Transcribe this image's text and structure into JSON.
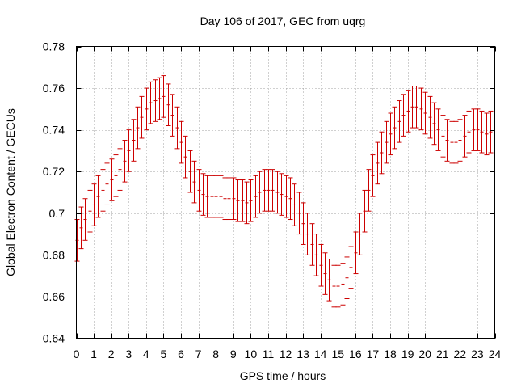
{
  "chart_data": {
    "type": "scatter",
    "title": "Day 106 of 2017, GEC from uqrg",
    "xlabel": "GPS time / hours",
    "ylabel": "Global Electron Content / GECUs",
    "xlim": [
      0,
      24
    ],
    "ylim": [
      0.64,
      0.78
    ],
    "x_ticks": [
      "0",
      "1",
      "2",
      "3",
      "4",
      "5",
      "6",
      "7",
      "8",
      "9",
      "10",
      "11",
      "12",
      "13",
      "14",
      "15",
      "16",
      "17",
      "18",
      "19",
      "20",
      "21",
      "22",
      "23",
      "24"
    ],
    "y_ticks": [
      "0.64",
      "0.66",
      "0.68",
      "0.7",
      "0.72",
      "0.74",
      "0.76",
      "0.78"
    ],
    "grid": true,
    "error_bar_color": "#cc0000",
    "series": [
      {
        "error": 0.01,
        "points": [
          [
            0.0,
            0.687
          ],
          [
            0.25,
            0.693
          ],
          [
            0.5,
            0.697
          ],
          [
            0.75,
            0.701
          ],
          [
            1.0,
            0.704
          ],
          [
            1.25,
            0.708
          ],
          [
            1.5,
            0.711
          ],
          [
            1.75,
            0.714
          ],
          [
            2.0,
            0.716
          ],
          [
            2.25,
            0.718
          ],
          [
            2.5,
            0.721
          ],
          [
            2.75,
            0.725
          ],
          [
            3.0,
            0.73
          ],
          [
            3.25,
            0.735
          ],
          [
            3.5,
            0.741
          ],
          [
            3.75,
            0.746
          ],
          [
            4.0,
            0.75
          ],
          [
            4.25,
            0.753
          ],
          [
            4.5,
            0.754
          ],
          [
            4.75,
            0.755
          ],
          [
            5.0,
            0.756
          ],
          [
            5.25,
            0.752
          ],
          [
            5.5,
            0.747
          ],
          [
            5.75,
            0.741
          ],
          [
            6.0,
            0.734
          ],
          [
            6.25,
            0.727
          ],
          [
            6.5,
            0.72
          ],
          [
            6.75,
            0.715
          ],
          [
            7.0,
            0.711
          ],
          [
            7.25,
            0.709
          ],
          [
            7.5,
            0.708
          ],
          [
            7.75,
            0.708
          ],
          [
            8.0,
            0.708
          ],
          [
            8.25,
            0.708
          ],
          [
            8.5,
            0.707
          ],
          [
            8.75,
            0.707
          ],
          [
            9.0,
            0.707
          ],
          [
            9.25,
            0.706
          ],
          [
            9.5,
            0.706
          ],
          [
            9.75,
            0.705
          ],
          [
            10.0,
            0.706
          ],
          [
            10.25,
            0.708
          ],
          [
            10.5,
            0.71
          ],
          [
            10.75,
            0.711
          ],
          [
            11.0,
            0.711
          ],
          [
            11.25,
            0.711
          ],
          [
            11.5,
            0.71
          ],
          [
            11.75,
            0.709
          ],
          [
            12.0,
            0.708
          ],
          [
            12.25,
            0.707
          ],
          [
            12.5,
            0.704
          ],
          [
            12.75,
            0.7
          ],
          [
            13.0,
            0.695
          ],
          [
            13.25,
            0.69
          ],
          [
            13.5,
            0.685
          ],
          [
            13.75,
            0.68
          ],
          [
            14.0,
            0.675
          ],
          [
            14.25,
            0.671
          ],
          [
            14.5,
            0.668
          ],
          [
            14.75,
            0.665
          ],
          [
            15.0,
            0.665
          ],
          [
            15.25,
            0.666
          ],
          [
            15.5,
            0.669
          ],
          [
            15.75,
            0.674
          ],
          [
            16.0,
            0.681
          ],
          [
            16.25,
            0.69
          ],
          [
            16.5,
            0.701
          ],
          [
            16.75,
            0.711
          ],
          [
            17.0,
            0.718
          ],
          [
            17.25,
            0.724
          ],
          [
            17.5,
            0.729
          ],
          [
            17.75,
            0.734
          ],
          [
            18.0,
            0.738
          ],
          [
            18.25,
            0.741
          ],
          [
            18.5,
            0.744
          ],
          [
            18.75,
            0.747
          ],
          [
            19.0,
            0.749
          ],
          [
            19.25,
            0.751
          ],
          [
            19.5,
            0.751
          ],
          [
            19.75,
            0.75
          ],
          [
            20.0,
            0.748
          ],
          [
            20.25,
            0.746
          ],
          [
            20.5,
            0.743
          ],
          [
            20.75,
            0.74
          ],
          [
            21.0,
            0.737
          ],
          [
            21.25,
            0.735
          ],
          [
            21.5,
            0.734
          ],
          [
            21.75,
            0.734
          ],
          [
            22.0,
            0.735
          ],
          [
            22.25,
            0.737
          ],
          [
            22.5,
            0.739
          ],
          [
            22.75,
            0.74
          ],
          [
            23.0,
            0.74
          ],
          [
            23.25,
            0.739
          ],
          [
            23.5,
            0.738
          ],
          [
            23.75,
            0.739
          ]
        ]
      }
    ]
  }
}
